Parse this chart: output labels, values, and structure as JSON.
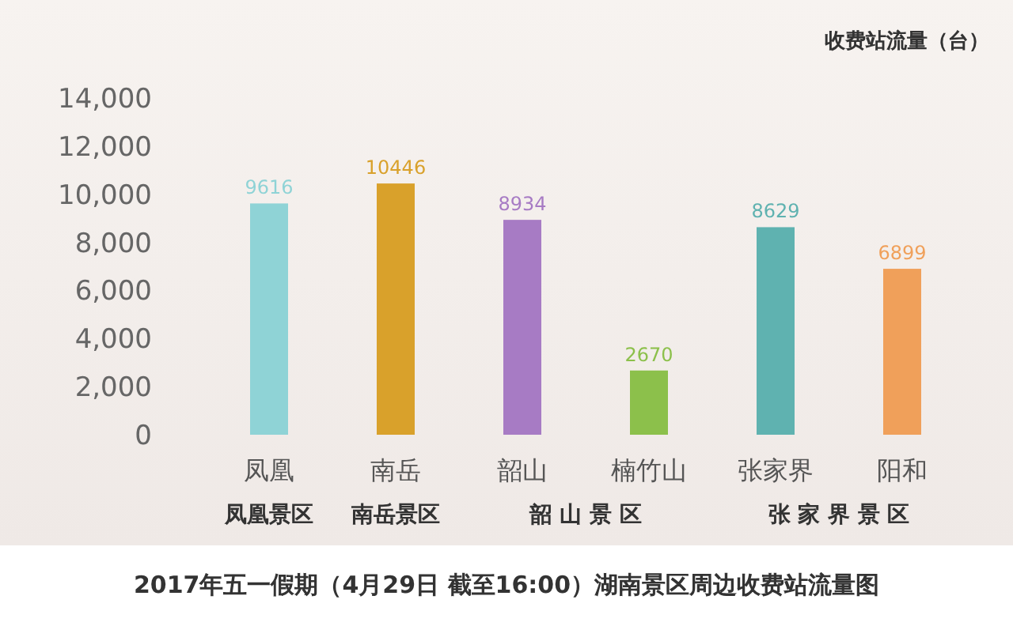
{
  "chart_data": {
    "type": "bar",
    "title": "2017年五一假期（4月29日 截至16:00）湖南景区周边收费站流量图",
    "ylabel": "收费站流量（台）",
    "categories": [
      "凤凰",
      "南岳",
      "韶山",
      "楠竹山",
      "张家界",
      "阳和"
    ],
    "values": [
      9616,
      10446,
      8934,
      2670,
      8629,
      6899
    ],
    "colors": [
      "#8fd3d6",
      "#d9a12b",
      "#a77bc4",
      "#8cc04b",
      "#5fb2b0",
      "#f0a05a"
    ],
    "ylim": [
      0,
      14000
    ],
    "yticks": [
      {
        "value": 0,
        "label": "0"
      },
      {
        "value": 2000,
        "label": "2,000"
      },
      {
        "value": 4000,
        "label": "4,000"
      },
      {
        "value": 6000,
        "label": "6,000"
      },
      {
        "value": 8000,
        "label": "8,000"
      },
      {
        "value": 10000,
        "label": "10,000"
      },
      {
        "value": 12000,
        "label": "12,000"
      },
      {
        "value": 14000,
        "label": "14,000"
      }
    ],
    "data_labels": true,
    "grid": false,
    "annotations": [
      "凤凰景区",
      "南岳景区",
      "韶 山 景 区",
      "张 家 界 景 区"
    ]
  }
}
